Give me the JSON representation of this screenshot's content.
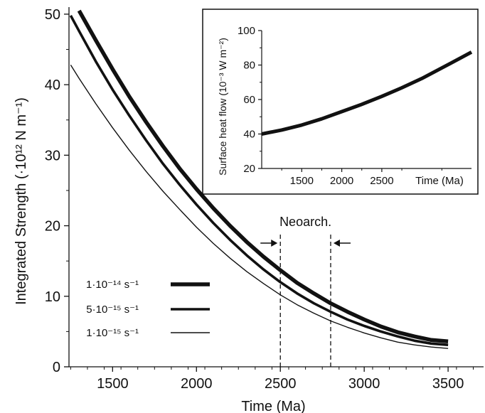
{
  "chart_data": [
    {
      "type": "line",
      "title": "",
      "xlabel": "Time (Ma)",
      "ylabel": "Integrated Strength (·10¹² N m⁻¹)",
      "xlim": [
        1240,
        3720
      ],
      "ylim": [
        0,
        51
      ],
      "x_ticks": [
        "1500",
        "2000",
        "2500",
        "3000",
        "3500"
      ],
      "y_ticks": [
        "0",
        "10",
        "20",
        "30",
        "40",
        "50"
      ],
      "grid": false,
      "legend_position": "bottom-left",
      "series": [
        {
          "name": "1·10⁻¹⁴ s⁻¹",
          "color": "#111111",
          "x": [
            1300,
            1400,
            1500,
            1600,
            1700,
            1800,
            1900,
            2000,
            2100,
            2200,
            2300,
            2400,
            2500,
            2600,
            2700,
            2800,
            2900,
            3000,
            3100,
            3200,
            3300,
            3400,
            3500
          ],
          "y": [
            50.5,
            46.3,
            42.2,
            38.3,
            34.7,
            31.3,
            28.1,
            25.2,
            22.5,
            20.0,
            17.7,
            15.6,
            13.7,
            11.9,
            10.4,
            9.0,
            7.8,
            6.7,
            5.7,
            4.9,
            4.3,
            3.8,
            3.6
          ]
        },
        {
          "name": "5·10⁻¹⁵ s⁻¹",
          "color": "#111111",
          "x": [
            1250,
            1300,
            1400,
            1500,
            1600,
            1700,
            1800,
            1900,
            2000,
            2100,
            2200,
            2300,
            2400,
            2500,
            2600,
            2700,
            2800,
            2900,
            3000,
            3100,
            3200,
            3300,
            3400,
            3500
          ],
          "y": [
            49.8,
            47.6,
            43.3,
            39.3,
            35.6,
            32.1,
            28.8,
            25.8,
            23.0,
            20.4,
            18.0,
            15.8,
            13.8,
            12.0,
            10.4,
            9.0,
            7.8,
            6.7,
            5.8,
            5.0,
            4.3,
            3.7,
            3.3,
            3.1
          ]
        },
        {
          "name": "1·10⁻¹⁵ s⁻¹",
          "color": "#111111",
          "x": [
            1250,
            1300,
            1400,
            1500,
            1600,
            1700,
            1800,
            1900,
            2000,
            2100,
            2200,
            2300,
            2400,
            2500,
            2600,
            2700,
            2800,
            2900,
            3000,
            3100,
            3200,
            3300,
            3400,
            3500
          ],
          "y": [
            42.8,
            40.9,
            37.3,
            33.9,
            30.7,
            27.7,
            24.9,
            22.3,
            19.8,
            17.5,
            15.4,
            13.5,
            11.8,
            10.2,
            8.8,
            7.6,
            6.5,
            5.6,
            4.8,
            4.1,
            3.5,
            3.1,
            2.8,
            2.6
          ]
        }
      ],
      "annotations": [
        {
          "text": "Neoarch.",
          "x_range": [
            2500,
            2800
          ]
        }
      ]
    },
    {
      "type": "line",
      "title": "",
      "xlabel": "",
      "ylabel": "Surface heat flow (10⁻³ W m⁻²)",
      "axis_end_label": "Time (Ma)",
      "xlim": [
        1000,
        3620
      ],
      "ylim": [
        20,
        100
      ],
      "x_ticks": [
        "1500",
        "2000",
        "2500"
      ],
      "y_ticks": [
        "20",
        "40",
        "60",
        "80",
        "100"
      ],
      "grid": false,
      "position": "top-right inset",
      "series": [
        {
          "color": "#111111",
          "x": [
            1000,
            1250,
            1500,
            1750,
            2000,
            2250,
            2500,
            2750,
            3000,
            3250,
            3500,
            3620
          ],
          "y": [
            40.0,
            42.3,
            45.2,
            48.8,
            53.0,
            57.2,
            61.8,
            66.8,
            72.2,
            78.3,
            84.5,
            87.5
          ]
        }
      ]
    }
  ]
}
